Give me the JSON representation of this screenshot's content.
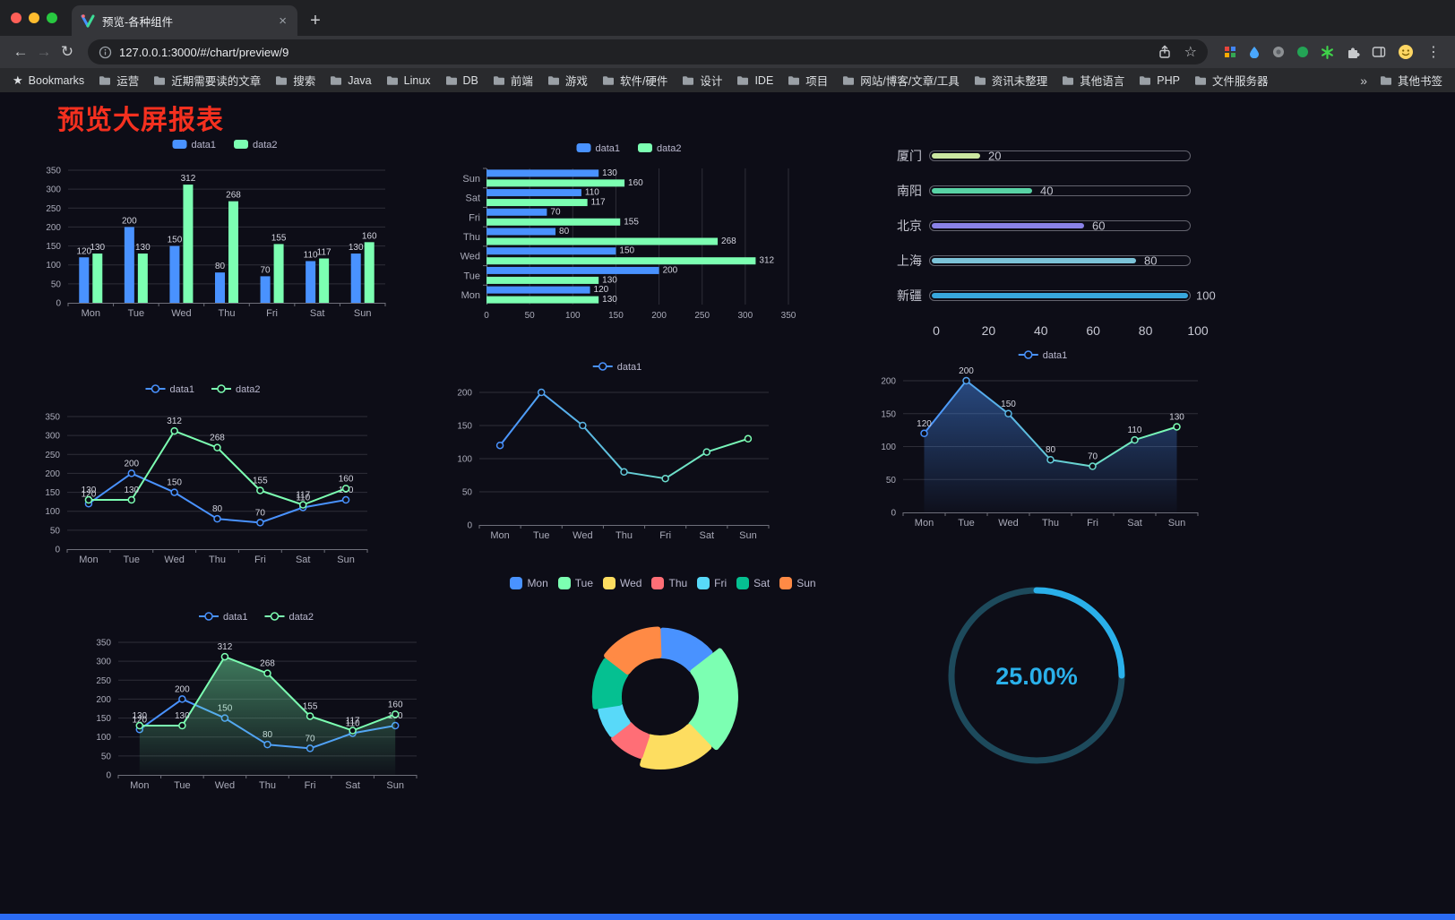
{
  "browser": {
    "traffic_lights": [
      "#ff5f57",
      "#febc2e",
      "#28c840"
    ],
    "tab": {
      "title": "预览-各种组件"
    },
    "toolbar": {
      "url": "127.0.0.1:3000/#/chart/preview/9"
    },
    "icons": {
      "close": "×",
      "newtab": "+",
      "back": "←",
      "forward": "→",
      "reload": "↻",
      "star": "☆",
      "menu": "⋮",
      "bookmark_star": "★",
      "overflow": "»"
    },
    "bookmarks_label": "Bookmarks",
    "bookmarks": [
      "运营",
      "近期需要读的文章",
      "搜索",
      "Java",
      "Linux",
      "DB",
      "前端",
      "游戏",
      "软件/硬件",
      "设计",
      "IDE",
      "项目",
      "网站/博客/文章/工具",
      "资讯未整理",
      "其他语言",
      "PHP",
      "文件服务器"
    ],
    "other_bookmarks": "其他书签"
  },
  "page": {
    "title": "预览大屏报表"
  },
  "chart_data": [
    {
      "id": "bar-grouped",
      "type": "bar",
      "categories": [
        "Mon",
        "Tue",
        "Wed",
        "Thu",
        "Fri",
        "Sat",
        "Sun"
      ],
      "series": [
        {
          "name": "data1",
          "color": "#4992ff",
          "values": [
            120,
            200,
            150,
            80,
            70,
            110,
            130
          ]
        },
        {
          "name": "data2",
          "color": "#7cffb2",
          "values": [
            130,
            130,
            312,
            268,
            155,
            117,
            160
          ]
        }
      ],
      "ylim": [
        0,
        350
      ],
      "yticks": [
        0,
        50,
        100,
        150,
        200,
        250,
        300,
        350
      ],
      "legend_position": "top",
      "value_labels": true
    },
    {
      "id": "hbar-grouped",
      "type": "bar-horizontal",
      "first_category_at": "bottom",
      "categories": [
        "Mon",
        "Tue",
        "Wed",
        "Thu",
        "Fri",
        "Sat",
        "Sun"
      ],
      "series": [
        {
          "name": "data1",
          "color": "#4992ff",
          "values": [
            120,
            200,
            150,
            80,
            70,
            110,
            130
          ]
        },
        {
          "name": "data2",
          "color": "#7cffb2",
          "values": [
            130,
            130,
            312,
            268,
            155,
            117,
            160
          ]
        }
      ],
      "xlim": [
        0,
        350
      ],
      "xticks": [
        0,
        50,
        100,
        150,
        200,
        250,
        300,
        350
      ],
      "legend_position": "top",
      "value_labels": true
    },
    {
      "id": "city-progress",
      "type": "bar-horizontal",
      "style": "progress",
      "items": [
        {
          "label": "厦门",
          "value": 20,
          "color": "#cbe7a0"
        },
        {
          "label": "南阳",
          "value": 40,
          "color": "#58d3a5"
        },
        {
          "label": "北京",
          "value": 60,
          "color": "#8a82e8"
        },
        {
          "label": "上海",
          "value": 80,
          "color": "#7cc3d8"
        },
        {
          "label": "新疆",
          "value": 100,
          "color": "#38a7dd"
        }
      ],
      "xlim": [
        0,
        100
      ],
      "xticks": [
        0,
        20,
        40,
        60,
        80,
        100
      ]
    },
    {
      "id": "line-two",
      "type": "line",
      "categories": [
        "Mon",
        "Tue",
        "Wed",
        "Thu",
        "Fri",
        "Sat",
        "Sun"
      ],
      "series": [
        {
          "name": "data1",
          "color": "#4992ff",
          "values": [
            120,
            200,
            150,
            80,
            70,
            110,
            130
          ]
        },
        {
          "name": "data2",
          "color": "#7cffb2",
          "values": [
            130,
            130,
            312,
            268,
            155,
            117,
            160
          ]
        }
      ],
      "ylim": [
        0,
        350
      ],
      "yticks": [
        0,
        50,
        100,
        150,
        200,
        250,
        300,
        350
      ],
      "legend_position": "top",
      "value_labels": true
    },
    {
      "id": "line-gradient",
      "type": "line",
      "categories": [
        "Mon",
        "Tue",
        "Wed",
        "Thu",
        "Fri",
        "Sat",
        "Sun"
      ],
      "series": [
        {
          "name": "data1",
          "gradient": [
            "#4992ff",
            "#7cffb2"
          ],
          "values": [
            120,
            200,
            150,
            80,
            70,
            110,
            130
          ]
        }
      ],
      "ylim": [
        0,
        200
      ],
      "yticks": [
        0,
        50,
        100,
        150,
        200
      ],
      "legend_position": "top",
      "value_labels": false
    },
    {
      "id": "area-gradient",
      "type": "area",
      "categories": [
        "Mon",
        "Tue",
        "Wed",
        "Thu",
        "Fri",
        "Sat",
        "Sun"
      ],
      "series": [
        {
          "name": "data1",
          "gradient": [
            "#4992ff",
            "#7cffb2"
          ],
          "area": true,
          "area_color": "#4992ff",
          "values": [
            120,
            200,
            150,
            80,
            70,
            110,
            130
          ]
        }
      ],
      "ylim": [
        0,
        200
      ],
      "yticks": [
        0,
        50,
        100,
        150,
        200
      ],
      "legend_position": "top",
      "value_labels": true
    },
    {
      "id": "line-area-two",
      "type": "line",
      "categories": [
        "Mon",
        "Tue",
        "Wed",
        "Thu",
        "Fri",
        "Sat",
        "Sun"
      ],
      "series": [
        {
          "name": "data1",
          "color": "#4992ff",
          "values": [
            120,
            200,
            150,
            80,
            70,
            110,
            130
          ]
        },
        {
          "name": "data2",
          "color": "#7cffb2",
          "area": true,
          "values": [
            130,
            130,
            312,
            268,
            155,
            117,
            160
          ]
        }
      ],
      "ylim": [
        0,
        350
      ],
      "yticks": [
        0,
        50,
        100,
        150,
        200,
        250,
        300,
        350
      ],
      "legend_position": "top",
      "value_labels": true
    },
    {
      "id": "rose-donut",
      "type": "pie",
      "donut": true,
      "rose": true,
      "labels": [
        "Mon",
        "Tue",
        "Wed",
        "Thu",
        "Fri",
        "Sat",
        "Sun"
      ],
      "values": [
        120,
        200,
        150,
        80,
        70,
        110,
        130
      ],
      "colors": [
        "#4992ff",
        "#7cffb2",
        "#fddd60",
        "#ff6e76",
        "#58d9f9",
        "#05c091",
        "#ff8a45"
      ],
      "legend_position": "top"
    },
    {
      "id": "gauge-progress",
      "type": "gauge",
      "value": 25,
      "max": 100,
      "display": "25.00%",
      "color": "#2ab0ea",
      "track_color": "#1d4a5c"
    }
  ]
}
